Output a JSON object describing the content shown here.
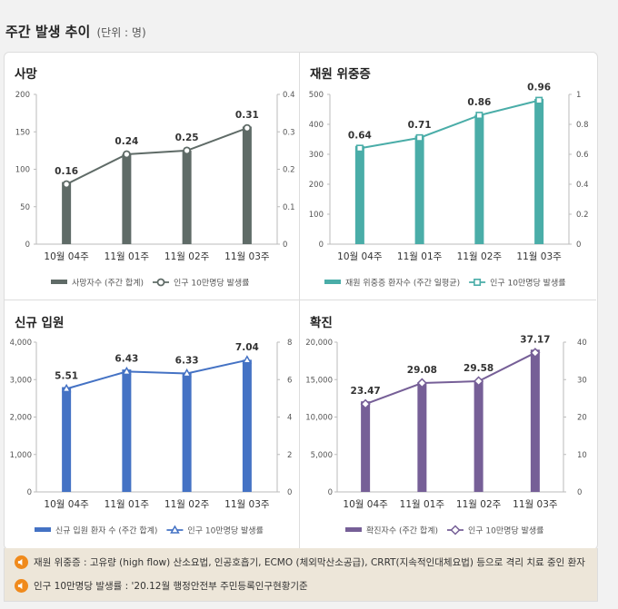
{
  "page": {
    "title": "주간 발생 추이",
    "unit": "(단위 : 명)"
  },
  "categories": [
    "10월 04주",
    "11월 01주",
    "11월 02주",
    "11월 03주"
  ],
  "chart_data": [
    {
      "type": "bar+line",
      "title": "사망",
      "color": "#5f6b67",
      "categories": [
        "10월 04주",
        "11월 01주",
        "11월 02주",
        "11월 03주"
      ],
      "bar_series": {
        "name": "사망자수 (주간 합계)",
        "values": [
          83,
          120,
          125,
          157
        ]
      },
      "line_series": {
        "name": "인구 10만명당 발생률",
        "values": [
          0.16,
          0.24,
          0.25,
          0.31
        ],
        "labels": [
          "0.16",
          "0.24",
          "0.25",
          "0.31"
        ],
        "marker": "circle"
      },
      "left_axis": {
        "ylim": [
          0,
          200
        ],
        "ticks": [
          "0",
          "50",
          "100",
          "150",
          "200"
        ]
      },
      "right_axis": {
        "ylim": [
          0,
          0.4
        ],
        "ticks": [
          "0",
          "0.1",
          "0.2",
          "0.3",
          "0.4"
        ]
      }
    },
    {
      "type": "bar+line",
      "title": "재원 위중증",
      "color": "#4aada8",
      "categories": [
        "10월 04주",
        "11월 01주",
        "11월 02주",
        "11월 03주"
      ],
      "bar_series": {
        "name": "재원 위중증 환자수 (주간 일평균)",
        "values": [
          328,
          362,
          432,
          485
        ]
      },
      "line_series": {
        "name": "인구 10만명당 발생률",
        "values": [
          0.64,
          0.71,
          0.86,
          0.96
        ],
        "labels": [
          "0.64",
          "0.71",
          "0.86",
          "0.96"
        ],
        "marker": "square"
      },
      "left_axis": {
        "ylim": [
          0,
          500
        ],
        "ticks": [
          "0",
          "100",
          "200",
          "300",
          "400",
          "500"
        ]
      },
      "right_axis": {
        "ylim": [
          0,
          1
        ],
        "ticks": [
          "0",
          "0.2",
          "0.4",
          "0.6",
          "0.8",
          "1"
        ]
      }
    },
    {
      "type": "bar+line",
      "title": "신규 입원",
      "color": "#4472c4",
      "categories": [
        "10월 04주",
        "11월 01주",
        "11월 02주",
        "11월 03주"
      ],
      "bar_series": {
        "name": "신규 입원 환자 수 (주간 합계)",
        "values": [
          2800,
          3270,
          3190,
          3530
        ]
      },
      "line_series": {
        "name": "인구 10만명당 발생률",
        "values": [
          5.51,
          6.43,
          6.33,
          7.04
        ],
        "labels": [
          "5.51",
          "6.43",
          "6.33",
          "7.04"
        ],
        "marker": "triangle"
      },
      "left_axis": {
        "ylim": [
          0,
          4000
        ],
        "ticks": [
          "0",
          "1,000",
          "2,000",
          "3,000",
          "4,000"
        ]
      },
      "right_axis": {
        "ylim": [
          0,
          8
        ],
        "ticks": [
          "0",
          "2",
          "4",
          "6",
          "8"
        ]
      }
    },
    {
      "type": "bar+line",
      "title": "확진",
      "color": "#765f97",
      "categories": [
        "10월 04주",
        "11월 01주",
        "11월 02주",
        "11월 03주"
      ],
      "bar_series": {
        "name": "확진자수 (주간 합계)",
        "values": [
          12100,
          14500,
          14800,
          19000
        ]
      },
      "line_series": {
        "name": "인구 10만명당 발생률",
        "values": [
          23.47,
          29.08,
          29.58,
          37.17
        ],
        "labels": [
          "23.47",
          "29.08",
          "29.58",
          "37.17"
        ],
        "marker": "diamond"
      },
      "left_axis": {
        "ylim": [
          0,
          20000
        ],
        "ticks": [
          "0",
          "5,000",
          "10,000",
          "15,000",
          "20,000"
        ]
      },
      "right_axis": {
        "ylim": [
          0,
          40
        ],
        "ticks": [
          "0",
          "10",
          "20",
          "30",
          "40"
        ]
      }
    }
  ],
  "notes": [
    "재원 위중증 : 고유량 (high flow) 산소요법, 인공호흡기, ECMO (체외막산소공급), CRRT(지속적인대체요법) 등으로 격리 치료 중인 환자",
    "인구 10만명당 발생률 : '20.12월 행정안전부 주민등록인구현황기준"
  ]
}
